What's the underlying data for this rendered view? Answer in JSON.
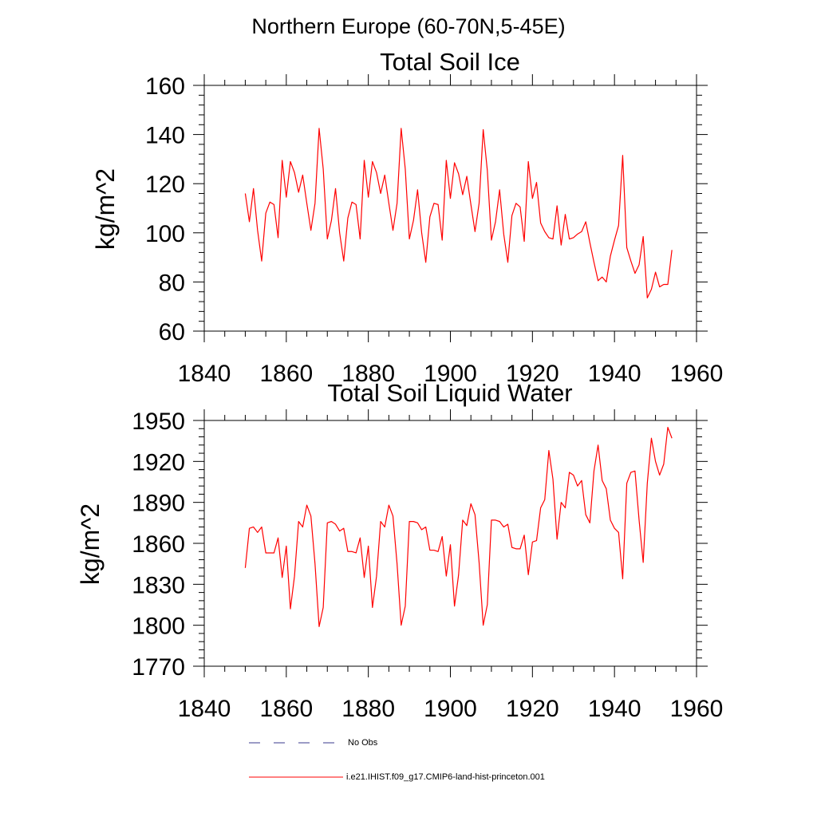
{
  "figure": {
    "suptitle": "Northern Europe (60-70N,5-45E)"
  },
  "chart_data": [
    {
      "type": "line",
      "title": "Total Soil Ice",
      "ylabel": "kg/m^2",
      "xlabel": "",
      "xlim": [
        1840,
        1960
      ],
      "ylim": [
        60,
        160
      ],
      "xticks": [
        1840,
        1860,
        1880,
        1900,
        1920,
        1940,
        1960
      ],
      "yticks": [
        60,
        80,
        100,
        120,
        140,
        160
      ],
      "x_start": 1850,
      "series": [
        {
          "name": "i.e21.IHIST.f09_g17.CMIP6-land-hist-princeton.001",
          "color": "#ff0000",
          "values": [
            116,
            104.5,
            118,
            101,
            88.5,
            108,
            112.5,
            111.5,
            98,
            129.5,
            114.5,
            129,
            124.5,
            116.5,
            123.5,
            112,
            101,
            112,
            142.5,
            126,
            97.5,
            105,
            118,
            100,
            88.5,
            106,
            112.5,
            111.5,
            97.5,
            129.5,
            114.5,
            129,
            124.5,
            116,
            123.5,
            112,
            101,
            112,
            142.5,
            126,
            97.5,
            105,
            117.5,
            100,
            88,
            106.5,
            112,
            111.5,
            97,
            129.5,
            114,
            128.5,
            124,
            115.5,
            123,
            111.5,
            100.5,
            112,
            142,
            125.5,
            97,
            104.5,
            117.5,
            99.5,
            88,
            107,
            112,
            110.5,
            96.5,
            129,
            114,
            120.5,
            104,
            100.5,
            98,
            97.5,
            111,
            95,
            107.5,
            97.5,
            98,
            99.5,
            100.5,
            104.5,
            96,
            88,
            80.5,
            82,
            80,
            90.5,
            97,
            103,
            131.5,
            94,
            88.5,
            83.5,
            87,
            98.5,
            73.5,
            77,
            84,
            78,
            79,
            79,
            93
          ]
        }
      ]
    },
    {
      "type": "line",
      "title": "Total Soil Liquid Water",
      "ylabel": "kg/m^2",
      "xlabel": "",
      "xlim": [
        1840,
        1960
      ],
      "ylim": [
        1770,
        1950
      ],
      "xticks": [
        1840,
        1860,
        1880,
        1900,
        1920,
        1940,
        1960
      ],
      "yticks": [
        1770,
        1800,
        1830,
        1860,
        1890,
        1920,
        1950
      ],
      "x_start": 1850,
      "series": [
        {
          "name": "i.e21.IHIST.f09_g17.CMIP6-land-hist-princeton.001",
          "color": "#ff0000",
          "values": [
            1842,
            1871,
            1872,
            1868,
            1872,
            1853,
            1853,
            1853,
            1864,
            1835,
            1858,
            1812,
            1836,
            1876,
            1872,
            1888,
            1880,
            1845,
            1799,
            1813,
            1875,
            1876,
            1874,
            1869,
            1871,
            1854,
            1854,
            1853,
            1864,
            1835,
            1858,
            1813,
            1836,
            1876,
            1872,
            1888,
            1880,
            1845,
            1800,
            1814,
            1876,
            1876,
            1875,
            1870,
            1872,
            1855,
            1855,
            1854,
            1865,
            1836,
            1859,
            1814,
            1837,
            1877,
            1873,
            1889,
            1881,
            1846,
            1800,
            1815,
            1877,
            1877,
            1876,
            1872,
            1874,
            1857,
            1856,
            1856,
            1866,
            1837,
            1861,
            1862,
            1886,
            1892,
            1928,
            1907,
            1863,
            1890,
            1886,
            1912,
            1910,
            1902,
            1906,
            1881,
            1875,
            1913,
            1932,
            1906,
            1900,
            1877,
            1871,
            1868,
            1834,
            1904,
            1912,
            1913,
            1877,
            1846,
            1904,
            1937,
            1920,
            1910,
            1918,
            1945,
            1937
          ]
        }
      ]
    }
  ],
  "legend": {
    "position": "bottom",
    "entries": [
      {
        "label": "No Obs",
        "color": "#3a3a8c",
        "style": "dashed"
      },
      {
        "label": "i.e21.IHIST.f09_g17.CMIP6-land-hist-princeton.001",
        "color": "#ff0000",
        "style": "solid"
      }
    ]
  }
}
